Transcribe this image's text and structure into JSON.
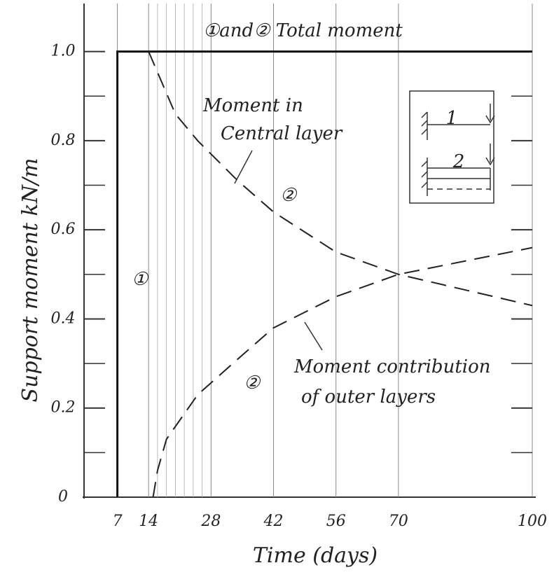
{
  "chart_data": {
    "type": "line",
    "xlabel": "Time (days)",
    "ylabel": "Support moment kN/m",
    "xlim": [
      0,
      100
    ],
    "ylim": [
      0,
      1.1
    ],
    "xticks": [
      7,
      14,
      28,
      42,
      56,
      70,
      100
    ],
    "xminorticks": [
      16,
      18,
      20,
      22,
      24,
      26
    ],
    "yticks": [
      0,
      0.2,
      0.4,
      0.6,
      0.8,
      {
        "value": 1,
        "label": "1.0"
      }
    ],
    "yminorticks": [
      0.1,
      0.3,
      0.5,
      0.7,
      0.9
    ],
    "grid": true,
    "series": [
      {
        "color": "#111",
        "dashed": false,
        "x": [
          7,
          7,
          100
        ],
        "values": [
          0,
          1,
          1
        ]
      },
      {
        "color": "#222",
        "dashed": true,
        "x": [
          14,
          20,
          25,
          34,
          42,
          56,
          70,
          100
        ],
        "values": [
          1,
          0.86,
          0.8,
          0.71,
          0.64,
          0.55,
          0.5,
          0.43
        ]
      },
      {
        "color": "#222",
        "dashed": true,
        "x": [
          15,
          16,
          18,
          25,
          34,
          42,
          56,
          70,
          100
        ],
        "values": [
          0,
          0.06,
          0.13,
          0.23,
          0.31,
          0.38,
          0.45,
          0.5,
          0.56
        ]
      }
    ],
    "annotations": [
      "①and② Total moment",
      "Moment in",
      "Central layer",
      "②",
      "①",
      "Moment contribution",
      "of outer layers",
      "②"
    ],
    "inset_labels": [
      "1",
      "2"
    ]
  }
}
